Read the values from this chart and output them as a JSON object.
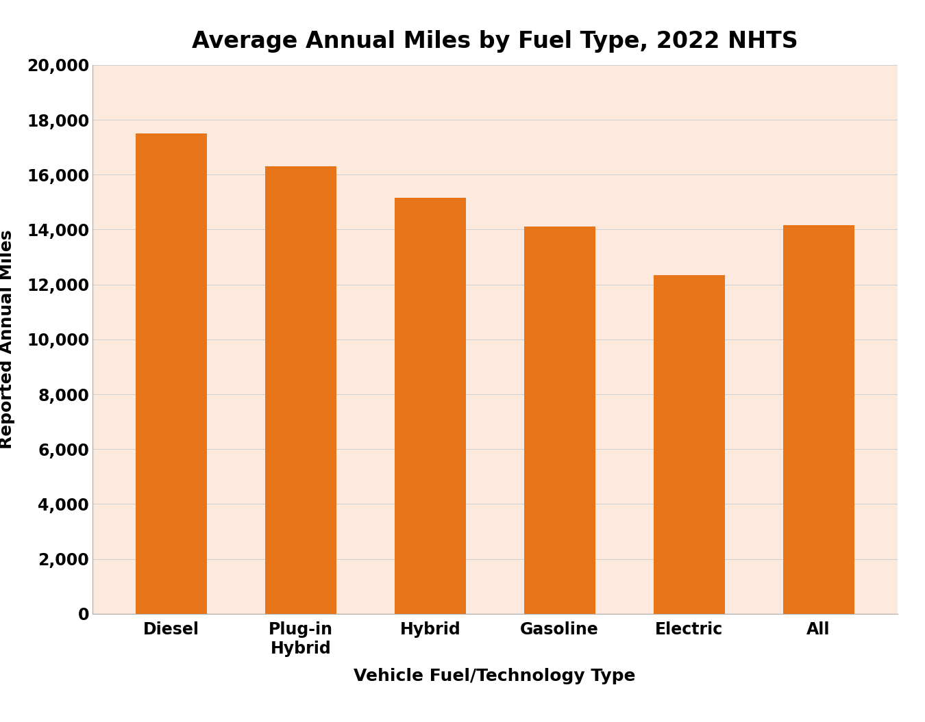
{
  "title": "Average Annual Miles by Fuel Type, 2022 NHTS",
  "categories": [
    "Diesel",
    "Plug-in\nHybrid",
    "Hybrid",
    "Gasoline",
    "Electric",
    "All"
  ],
  "values": [
    17500,
    16300,
    15150,
    14100,
    12350,
    14150
  ],
  "bar_color": "#E8751A",
  "fig_background": "#FFFFFF",
  "plot_background": "#FDEADE",
  "ylabel": "Reported Annual Miles",
  "xlabel": "Vehicle Fuel/Technology Type",
  "ylim": [
    0,
    20000
  ],
  "yticks": [
    0,
    2000,
    4000,
    6000,
    8000,
    10000,
    12000,
    14000,
    16000,
    18000,
    20000
  ],
  "title_fontsize": 24,
  "axis_label_fontsize": 18,
  "tick_fontsize": 17,
  "tick_fontweight": "bold",
  "label_fontweight": "bold",
  "title_fontweight": "bold",
  "bar_width": 0.55
}
